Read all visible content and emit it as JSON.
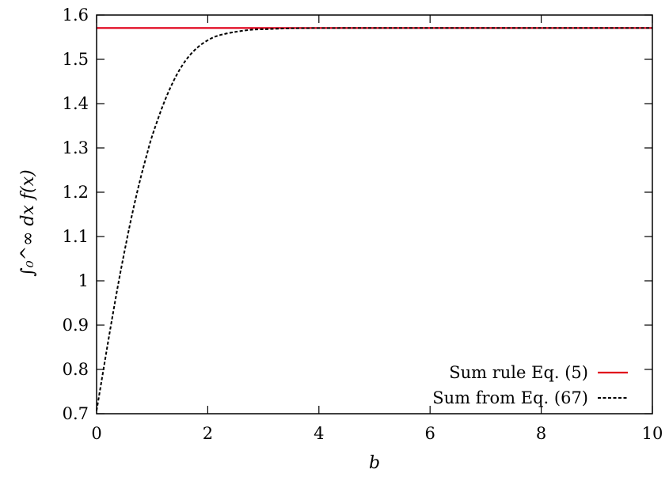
{
  "chart_data": {
    "type": "line",
    "title": "",
    "xlabel": "b",
    "ylabel": "∫₀^∞ dx f(x)",
    "xlim": [
      0,
      10
    ],
    "ylim": [
      0.7,
      1.6
    ],
    "x_ticks": [
      0,
      2,
      4,
      6,
      8,
      10
    ],
    "x_tick_labels": [
      "0",
      "2",
      "4",
      "6",
      "8",
      "10"
    ],
    "y_ticks": [
      0.7,
      0.8,
      0.9,
      1.0,
      1.1,
      1.2,
      1.3,
      1.4,
      1.5,
      1.6
    ],
    "y_tick_labels": [
      "0.7",
      "0.8",
      "0.9",
      "1",
      "1.1",
      "1.2",
      "1.3",
      "1.4",
      "1.5",
      "1.6"
    ],
    "grid": false,
    "legend_position": "bottom-right",
    "series": [
      {
        "name": "Sum rule Eq. (5)",
        "color": "#e0001a",
        "style": "solid",
        "x": [
          0,
          10
        ],
        "y": [
          1.5708,
          1.5708
        ]
      },
      {
        "name": "Sum from Eq. (67)",
        "color": "#000000",
        "style": "dashed",
        "x": [
          0,
          0.1,
          0.2,
          0.3,
          0.4,
          0.5,
          0.6,
          0.7,
          0.8,
          0.9,
          1.0,
          1.2,
          1.4,
          1.6,
          1.8,
          2.0,
          2.2,
          2.5,
          2.8,
          3.0,
          3.5,
          4.0,
          5.0,
          6.0,
          8.0,
          10.0
        ],
        "y": [
          0.707,
          0.782,
          0.857,
          0.93,
          1.0,
          1.065,
          1.127,
          1.184,
          1.236,
          1.283,
          1.327,
          1.398,
          1.455,
          1.497,
          1.525,
          1.543,
          1.554,
          1.562,
          1.567,
          1.568,
          1.57,
          1.5705,
          1.5708,
          1.5708,
          1.5708,
          1.5708
        ]
      }
    ]
  }
}
